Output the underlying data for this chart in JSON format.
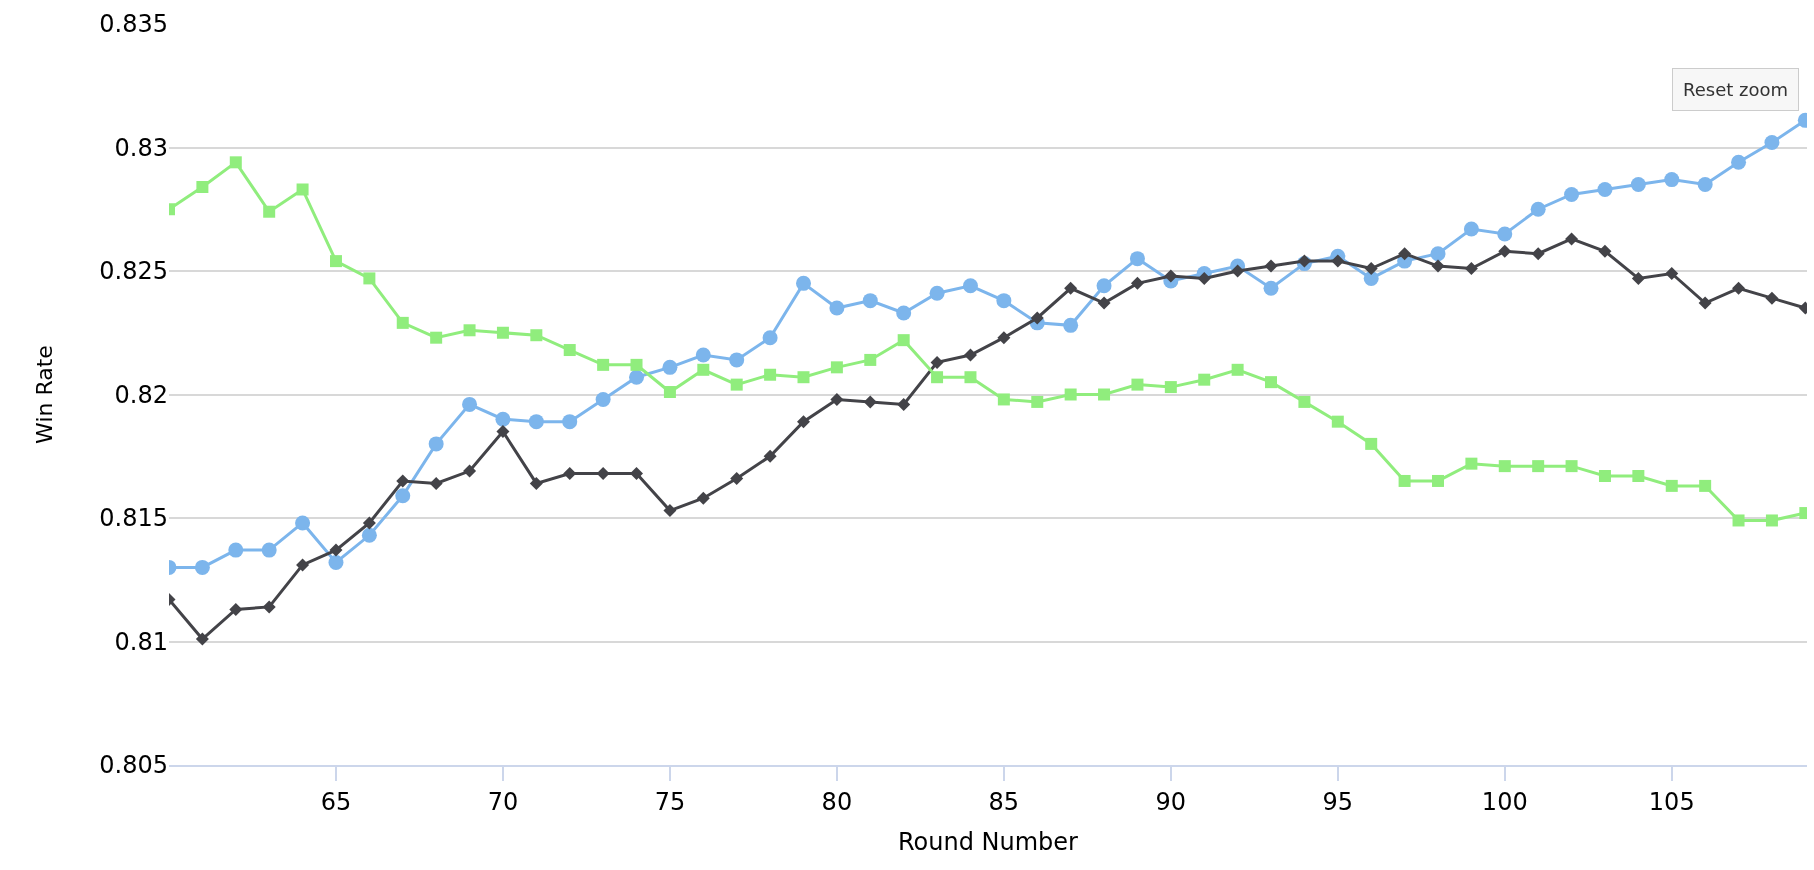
{
  "chart_data": {
    "type": "line",
    "xlabel": "Round Number",
    "ylabel": "Win Rate",
    "x": [
      60,
      61,
      62,
      63,
      64,
      65,
      66,
      67,
      68,
      69,
      70,
      71,
      72,
      73,
      74,
      75,
      76,
      77,
      78,
      79,
      80,
      81,
      82,
      83,
      84,
      85,
      86,
      87,
      88,
      89,
      90,
      91,
      92,
      93,
      94,
      95,
      96,
      97,
      98,
      99,
      100,
      101,
      102,
      103,
      104,
      105,
      106,
      107,
      108,
      109
    ],
    "series": [
      {
        "color": "#7cb5ec",
        "marker": "circle",
        "values": [
          0.813,
          0.813,
          0.8137,
          0.8137,
          0.8148,
          0.8132,
          0.8143,
          0.8159,
          0.818,
          0.8196,
          0.819,
          0.8189,
          0.8189,
          0.8198,
          0.8207,
          0.8211,
          0.8216,
          0.8214,
          0.8223,
          0.8245,
          0.8235,
          0.8238,
          0.8233,
          0.8241,
          0.8244,
          0.8238,
          0.8229,
          0.8228,
          0.8244,
          0.8255,
          0.8246,
          0.8249,
          0.8252,
          0.8243,
          0.8253,
          0.8256,
          0.8247,
          0.8254,
          0.8257,
          0.8267,
          0.8265,
          0.8275,
          0.8281,
          0.8283,
          0.8285,
          0.8287,
          0.8285,
          0.8294,
          0.8302,
          0.8311
        ]
      },
      {
        "color": "#434348",
        "marker": "diamond",
        "values": [
          0.8117,
          0.8101,
          0.8113,
          0.8114,
          0.8131,
          0.8137,
          0.8148,
          0.8165,
          0.8164,
          0.8169,
          0.8185,
          0.8164,
          0.8168,
          0.8168,
          0.8168,
          0.8153,
          0.8158,
          0.8166,
          0.8175,
          0.8189,
          0.8198,
          0.8197,
          0.8196,
          0.8213,
          0.8216,
          0.8223,
          0.8231,
          0.8243,
          0.8237,
          0.8245,
          0.8248,
          0.8247,
          0.825,
          0.8252,
          0.8254,
          0.8254,
          0.8251,
          0.8257,
          0.8252,
          0.8251,
          0.8258,
          0.8257,
          0.8263,
          0.8258,
          0.8247,
          0.8249,
          0.8237,
          0.8243,
          0.8239,
          0.8235
        ]
      },
      {
        "color": "#90ed7d",
        "marker": "square",
        "values": [
          0.8275,
          0.8284,
          0.8294,
          0.8274,
          0.8283,
          0.8254,
          0.8247,
          0.8229,
          0.8223,
          0.8226,
          0.8225,
          0.8224,
          0.8218,
          0.8212,
          0.8212,
          0.8201,
          0.821,
          0.8204,
          0.8208,
          0.8207,
          0.8211,
          0.8214,
          0.8222,
          0.8207,
          0.8207,
          0.8198,
          0.8197,
          0.82,
          0.82,
          0.8204,
          0.8203,
          0.8206,
          0.821,
          0.8205,
          0.8197,
          0.8189,
          0.818,
          0.8165,
          0.8165,
          0.8172,
          0.8171,
          0.8171,
          0.8171,
          0.8167,
          0.8167,
          0.8163,
          0.8163,
          0.8149,
          0.8149,
          0.8152
        ]
      }
    ],
    "xlim": [
      60,
      109.05
    ],
    "xticks": [
      65,
      70,
      75,
      80,
      85,
      90,
      95,
      100,
      105
    ],
    "ylim": [
      0.805,
      0.835
    ],
    "yticks": [
      0.805,
      0.81,
      0.815,
      0.82,
      0.825,
      0.83,
      0.835
    ],
    "grid": "y",
    "line_style": "solid",
    "annotations": [
      "Reset zoom"
    ]
  }
}
